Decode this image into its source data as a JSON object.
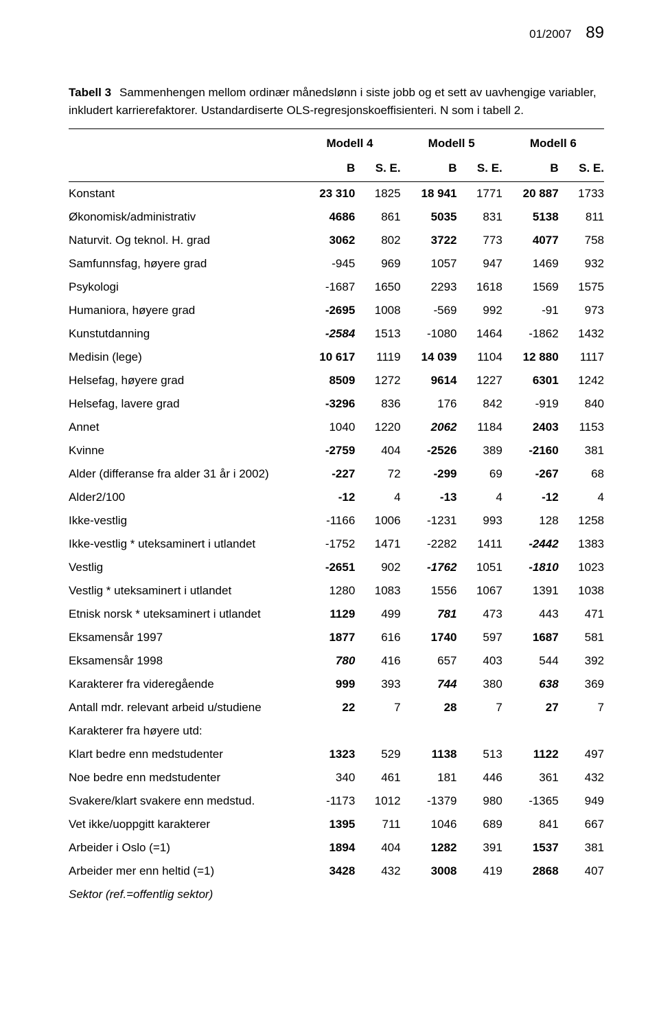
{
  "running_head": {
    "issue": "01/2007",
    "page_number": "89"
  },
  "caption": {
    "prefix": "Tabell 3",
    "text": "Sammenhengen mellom ordinær månedslønn i siste jobb og et sett av uavhengige variabler, inkludert karrierefaktorer. Ustandardiserte OLS-regresjonskoeffisienteri. N som i tabell 2."
  },
  "table": {
    "model_headers": [
      "Modell 4",
      "Modell 5",
      "Modell 6"
    ],
    "col_sub": {
      "b": "B",
      "se": "S. E."
    },
    "rows": [
      {
        "label": "Konstant",
        "label_style": "",
        "cells": [
          [
            "23 310",
            "bold"
          ],
          [
            "1825",
            ""
          ],
          [
            "18 941",
            "bold"
          ],
          [
            "1771",
            ""
          ],
          [
            "20 887",
            "bold"
          ],
          [
            "1733",
            ""
          ]
        ]
      },
      {
        "label": "Økonomisk/administrativ",
        "label_style": "",
        "cells": [
          [
            "4686",
            "bold"
          ],
          [
            "861",
            ""
          ],
          [
            "5035",
            "bold"
          ],
          [
            "831",
            ""
          ],
          [
            "5138",
            "bold"
          ],
          [
            "811",
            ""
          ]
        ]
      },
      {
        "label": "Naturvit. Og teknol. H. grad",
        "label_style": "",
        "cells": [
          [
            "3062",
            "bold"
          ],
          [
            "802",
            ""
          ],
          [
            "3722",
            "bold"
          ],
          [
            "773",
            ""
          ],
          [
            "4077",
            "bold"
          ],
          [
            "758",
            ""
          ]
        ]
      },
      {
        "label": "Samfunnsfag, høyere grad",
        "label_style": "",
        "cells": [
          [
            "-945",
            ""
          ],
          [
            "969",
            ""
          ],
          [
            "1057",
            ""
          ],
          [
            "947",
            ""
          ],
          [
            "1469",
            ""
          ],
          [
            "932",
            ""
          ]
        ]
      },
      {
        "label": "Psykologi",
        "label_style": "",
        "cells": [
          [
            "-1687",
            ""
          ],
          [
            "1650",
            ""
          ],
          [
            "2293",
            ""
          ],
          [
            "1618",
            ""
          ],
          [
            "1569",
            ""
          ],
          [
            "1575",
            ""
          ]
        ]
      },
      {
        "label": "Humaniora, høyere grad",
        "label_style": "",
        "cells": [
          [
            "-2695",
            "bold"
          ],
          [
            "1008",
            ""
          ],
          [
            "-569",
            ""
          ],
          [
            "992",
            ""
          ],
          [
            "-91",
            ""
          ],
          [
            "973",
            ""
          ]
        ]
      },
      {
        "label": "Kunstutdanning",
        "label_style": "",
        "cells": [
          [
            "-2584",
            "bold-italic"
          ],
          [
            "1513",
            ""
          ],
          [
            "-1080",
            ""
          ],
          [
            "1464",
            ""
          ],
          [
            "-1862",
            ""
          ],
          [
            "1432",
            ""
          ]
        ]
      },
      {
        "label": "Medisin (lege)",
        "label_style": "",
        "cells": [
          [
            "10 617",
            "bold"
          ],
          [
            "1119",
            ""
          ],
          [
            "14 039",
            "bold"
          ],
          [
            "1104",
            ""
          ],
          [
            "12 880",
            "bold"
          ],
          [
            "1117",
            ""
          ]
        ]
      },
      {
        "label": "Helsefag, høyere grad",
        "label_style": "",
        "cells": [
          [
            "8509",
            "bold"
          ],
          [
            "1272",
            ""
          ],
          [
            "9614",
            "bold"
          ],
          [
            "1227",
            ""
          ],
          [
            "6301",
            "bold"
          ],
          [
            "1242",
            ""
          ]
        ]
      },
      {
        "label": "Helsefag, lavere grad",
        "label_style": "",
        "cells": [
          [
            "-3296",
            "bold"
          ],
          [
            "836",
            ""
          ],
          [
            "176",
            ""
          ],
          [
            "842",
            ""
          ],
          [
            "-919",
            ""
          ],
          [
            "840",
            ""
          ]
        ]
      },
      {
        "label": "Annet",
        "label_style": "",
        "cells": [
          [
            "1040",
            ""
          ],
          [
            "1220",
            ""
          ],
          [
            "2062",
            "bold-italic"
          ],
          [
            "1184",
            ""
          ],
          [
            "2403",
            "bold"
          ],
          [
            "1153",
            ""
          ]
        ]
      },
      {
        "label": "Kvinne",
        "label_style": "",
        "cells": [
          [
            "-2759",
            "bold"
          ],
          [
            "404",
            ""
          ],
          [
            "-2526",
            "bold"
          ],
          [
            "389",
            ""
          ],
          [
            "-2160",
            "bold"
          ],
          [
            "381",
            ""
          ]
        ]
      },
      {
        "label": "Alder (differanse fra alder 31 år i 2002)",
        "label_style": "",
        "cells": [
          [
            "-227",
            "bold"
          ],
          [
            "72",
            ""
          ],
          [
            "-299",
            "bold"
          ],
          [
            "69",
            ""
          ],
          [
            "-267",
            "bold"
          ],
          [
            "68",
            ""
          ]
        ]
      },
      {
        "label": "Alder2/100",
        "label_style": "",
        "cells": [
          [
            "-12",
            "bold"
          ],
          [
            "4",
            ""
          ],
          [
            "-13",
            "bold"
          ],
          [
            "4",
            ""
          ],
          [
            "-12",
            "bold"
          ],
          [
            "4",
            ""
          ]
        ]
      },
      {
        "label": "Ikke-vestlig",
        "label_style": "",
        "cells": [
          [
            "-1166",
            ""
          ],
          [
            "1006",
            ""
          ],
          [
            "-1231",
            ""
          ],
          [
            "993",
            ""
          ],
          [
            "128",
            ""
          ],
          [
            "1258",
            ""
          ]
        ]
      },
      {
        "label": "Ikke-vestlig * uteksaminert i utlandet",
        "label_style": "",
        "cells": [
          [
            "-1752",
            ""
          ],
          [
            "1471",
            ""
          ],
          [
            "-2282",
            ""
          ],
          [
            "1411",
            ""
          ],
          [
            "-2442",
            "bold-italic"
          ],
          [
            "1383",
            ""
          ]
        ]
      },
      {
        "label": "Vestlig",
        "label_style": "",
        "cells": [
          [
            "-2651",
            "bold"
          ],
          [
            "902",
            ""
          ],
          [
            "-1762",
            "bold-italic"
          ],
          [
            "1051",
            ""
          ],
          [
            "-1810",
            "bold-italic"
          ],
          [
            "1023",
            ""
          ]
        ]
      },
      {
        "label": "Vestlig * uteksaminert i utlandet",
        "label_style": "",
        "cells": [
          [
            "1280",
            ""
          ],
          [
            "1083",
            ""
          ],
          [
            "1556",
            ""
          ],
          [
            "1067",
            ""
          ],
          [
            "1391",
            ""
          ],
          [
            "1038",
            ""
          ]
        ]
      },
      {
        "label": "Etnisk norsk * uteksaminert i utlandet",
        "label_style": "",
        "cells": [
          [
            "1129",
            "bold"
          ],
          [
            "499",
            ""
          ],
          [
            "781",
            "bold-italic"
          ],
          [
            "473",
            ""
          ],
          [
            "443",
            ""
          ],
          [
            "471",
            ""
          ]
        ]
      },
      {
        "label": "Eksamensår 1997",
        "label_style": "",
        "cells": [
          [
            "1877",
            "bold"
          ],
          [
            "616",
            ""
          ],
          [
            "1740",
            "bold"
          ],
          [
            "597",
            ""
          ],
          [
            "1687",
            "bold"
          ],
          [
            "581",
            ""
          ]
        ]
      },
      {
        "label": "Eksamensår 1998",
        "label_style": "",
        "cells": [
          [
            "780",
            "bold-italic"
          ],
          [
            "416",
            ""
          ],
          [
            "657",
            ""
          ],
          [
            "403",
            ""
          ],
          [
            "544",
            ""
          ],
          [
            "392",
            ""
          ]
        ]
      },
      {
        "label": "Karakterer fra videregående",
        "label_style": "",
        "cells": [
          [
            "999",
            "bold"
          ],
          [
            "393",
            ""
          ],
          [
            "744",
            "bold-italic"
          ],
          [
            "380",
            ""
          ],
          [
            "638",
            "bold-italic"
          ],
          [
            "369",
            ""
          ]
        ]
      },
      {
        "label": "Antall mdr. relevant arbeid u/studiene",
        "label_style": "",
        "cells": [
          [
            "22",
            "bold"
          ],
          [
            "7",
            ""
          ],
          [
            "28",
            "bold"
          ],
          [
            "7",
            ""
          ],
          [
            "27",
            "bold"
          ],
          [
            "7",
            ""
          ]
        ]
      },
      {
        "label": "Karakterer fra høyere utd:",
        "label_style": "",
        "cells": [
          [
            "",
            ""
          ],
          [
            "",
            ""
          ],
          [
            "",
            ""
          ],
          [
            "",
            ""
          ],
          [
            "",
            ""
          ],
          [
            "",
            ""
          ]
        ]
      },
      {
        "label": "Klart bedre enn medstudenter",
        "label_style": "",
        "cells": [
          [
            "1323",
            "bold"
          ],
          [
            "529",
            ""
          ],
          [
            "1138",
            "bold"
          ],
          [
            "513",
            ""
          ],
          [
            "1122",
            "bold"
          ],
          [
            "497",
            ""
          ]
        ]
      },
      {
        "label": "Noe bedre enn medstudenter",
        "label_style": "",
        "cells": [
          [
            "340",
            ""
          ],
          [
            "461",
            ""
          ],
          [
            "181",
            ""
          ],
          [
            "446",
            ""
          ],
          [
            "361",
            ""
          ],
          [
            "432",
            ""
          ]
        ]
      },
      {
        "label": "Svakere/klart svakere enn medstud.",
        "label_style": "",
        "cells": [
          [
            "-1173",
            ""
          ],
          [
            "1012",
            ""
          ],
          [
            "-1379",
            ""
          ],
          [
            "980",
            ""
          ],
          [
            "-1365",
            ""
          ],
          [
            "949",
            ""
          ]
        ]
      },
      {
        "label": "Vet ikke/uoppgitt karakterer",
        "label_style": "",
        "cells": [
          [
            "1395",
            "bold"
          ],
          [
            "711",
            ""
          ],
          [
            "1046",
            ""
          ],
          [
            "689",
            ""
          ],
          [
            "841",
            ""
          ],
          [
            "667",
            ""
          ]
        ]
      },
      {
        "label": "Arbeider i Oslo (=1)",
        "label_style": "",
        "cells": [
          [
            "1894",
            "bold"
          ],
          [
            "404",
            ""
          ],
          [
            "1282",
            "bold"
          ],
          [
            "391",
            ""
          ],
          [
            "1537",
            "bold"
          ],
          [
            "381",
            ""
          ]
        ]
      },
      {
        "label": "Arbeider mer enn heltid (=1)",
        "label_style": "",
        "cells": [
          [
            "3428",
            "bold"
          ],
          [
            "432",
            ""
          ],
          [
            "3008",
            "bold"
          ],
          [
            "419",
            ""
          ],
          [
            "2868",
            "bold"
          ],
          [
            "407",
            ""
          ]
        ]
      },
      {
        "label": "Sektor (ref.=offentlig sektor)",
        "label_style": "italic",
        "cells": [
          [
            "",
            ""
          ],
          [
            "",
            ""
          ],
          [
            "",
            ""
          ],
          [
            "",
            ""
          ],
          [
            "",
            ""
          ],
          [
            "",
            ""
          ]
        ]
      }
    ]
  }
}
